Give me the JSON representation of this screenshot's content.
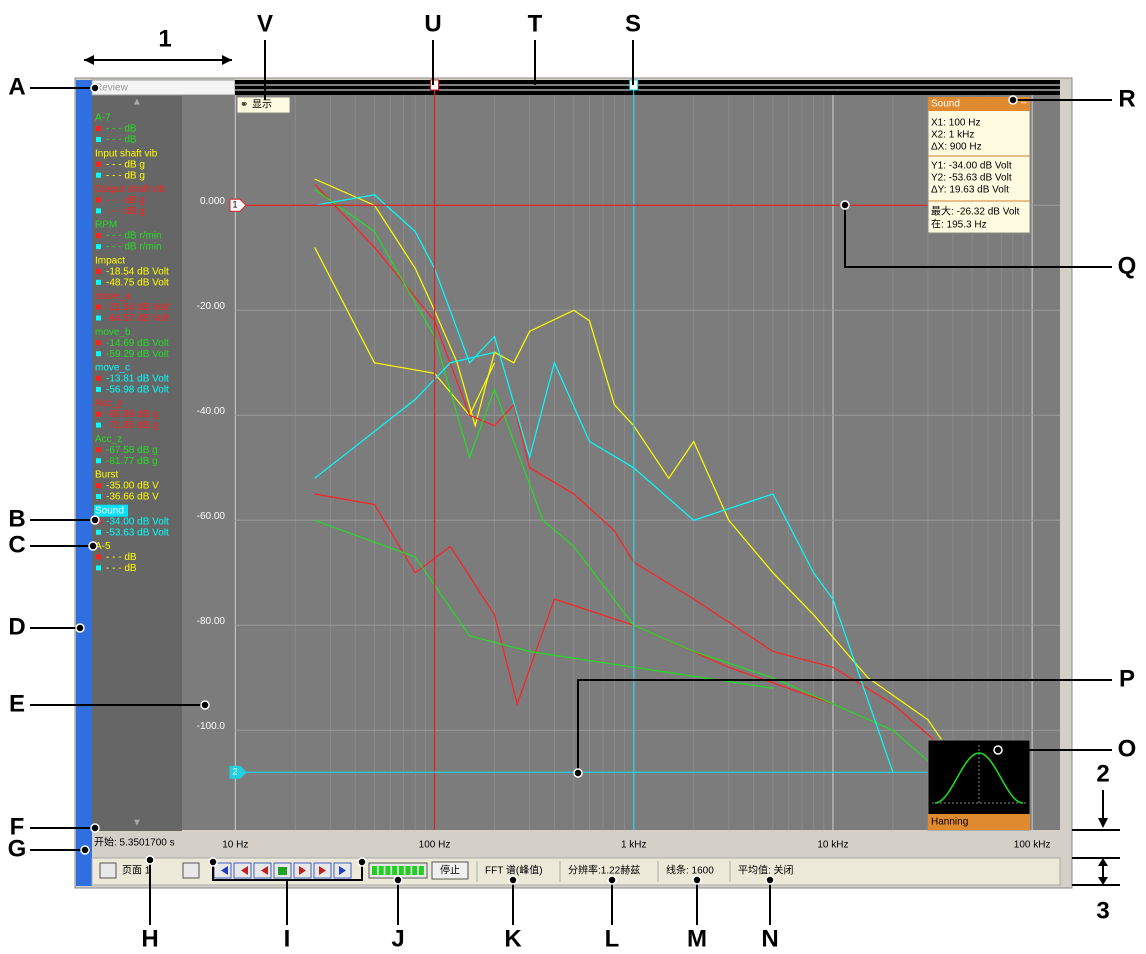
{
  "annotations": [
    "1",
    "A",
    "B",
    "C",
    "D",
    "E",
    "F",
    "G",
    "H",
    "I",
    "J",
    "K",
    "L",
    "M",
    "N",
    "O",
    "P",
    "Q",
    "R",
    "S",
    "T",
    "U",
    "V",
    "2",
    "3"
  ],
  "window": {
    "review_label": "Review",
    "show_button": "显示",
    "start_time": "开始: 5.3501700 s"
  },
  "channels": [
    {
      "name": "A-7",
      "color": "#22dd22",
      "cursor1": "- - - dB",
      "cursor2": "- - - dB"
    },
    {
      "name": "Input shaft vib",
      "color": "#ffff00",
      "cursor1": "- - - dB g",
      "cursor2": "- - - dB g"
    },
    {
      "name": "Output shaft vib",
      "color": "#ff2020",
      "cursor1": "- - - dB g",
      "cursor2": "- - - dB g"
    },
    {
      "name": "RPM",
      "color": "#22dd22",
      "cursor1": "- - - dB r/min",
      "cursor2": "- - - dB r/min"
    },
    {
      "name": "Impact",
      "color": "#ffff00",
      "cursor1": "-18.54  dB Volt",
      "cursor2": "-48.75  dB Volt"
    },
    {
      "name": "move_a",
      "color": "#ff2020",
      "cursor1": "-21.54  dB Volt",
      "cursor2": "-64.57  dB Volt"
    },
    {
      "name": "move_b",
      "color": "#22dd22",
      "cursor1": "-14.69  dB Volt",
      "cursor2": "-59.29  dB Volt"
    },
    {
      "name": "move_c",
      "color": "#00ffff",
      "cursor1": "-13.81  dB Volt",
      "cursor2": "-56.98  dB Volt"
    },
    {
      "name": "Acc_y",
      "color": "#ff2020",
      "cursor1": "-66.99  dB g",
      "cursor2": "-71.85  dB g"
    },
    {
      "name": "Acc_z",
      "color": "#22dd22",
      "cursor1": "-67.58  dB g",
      "cursor2": "-81.77  dB g"
    },
    {
      "name": "Burst",
      "color": "#ffff00",
      "cursor1": "-35.00  dB V",
      "cursor2": "-36.66  dB V"
    },
    {
      "name": "Sound",
      "color": "#00ffff",
      "cursor1": "-34.00  dB Volt",
      "cursor2": "-53.63  dB Volt",
      "selected": true
    },
    {
      "name": "A-5",
      "color": "#ffff00",
      "cursor1": "- - - dB",
      "cursor2": "- - - dB"
    }
  ],
  "cursor_box": {
    "title": "Sound",
    "lines": [
      "X1: 100 Hz",
      "X2: 1 kHz",
      "ΔX: 900 Hz",
      "Y1: -34.00  dB Volt",
      "Y2: -53.63  dB Volt",
      "ΔY: 19.63  dB Volt",
      "最大: -26.32  dB Volt",
      "在: 195.3 Hz"
    ]
  },
  "window_function": "Hanning",
  "status_bar": {
    "page": "页面 1",
    "stop": "停止",
    "mode": "FFT 谱(峰值)",
    "resolution": "分辨率:1.22赫兹",
    "lines": "线条: 1600",
    "average": "平均值: 关闭"
  },
  "chart_data": {
    "type": "line",
    "xscale": "log",
    "xlim": [
      5.4,
      138000
    ],
    "ylim": [
      -119,
      21
    ],
    "xticks": [
      {
        "value": 10,
        "label": "10 Hz"
      },
      {
        "value": 100,
        "label": "100 Hz"
      },
      {
        "value": 1000,
        "label": "1 kHz"
      },
      {
        "value": 10000,
        "label": "10 kHz"
      },
      {
        "value": 100000,
        "label": "100 kHz"
      }
    ],
    "yticks": [
      {
        "value": 0,
        "label": "0.000"
      },
      {
        "value": -20,
        "label": "-20.00"
      },
      {
        "value": -40,
        "label": "-40.00"
      },
      {
        "value": -60,
        "label": "-60.00"
      },
      {
        "value": -80,
        "label": "-80.00"
      },
      {
        "value": -100,
        "label": "-100.0"
      }
    ],
    "grid": true,
    "cursors": {
      "x": [
        100,
        1000
      ],
      "y": [
        0,
        -108
      ],
      "labels": [
        "1",
        "2"
      ],
      "colors": [
        "#e02020",
        "#20d0e0"
      ]
    },
    "series": [
      {
        "color": "#ffff00",
        "x": [
          25,
          50,
          80,
          100,
          130,
          160,
          200,
          250,
          300,
          500,
          600,
          800,
          1000,
          1500,
          2000,
          3000,
          5000,
          8000,
          15000,
          30000,
          40000
        ],
        "values": [
          5,
          0,
          -12,
          -20,
          -30,
          -42,
          -28,
          -30,
          -24,
          -20,
          -22,
          -38,
          -42,
          -52,
          -45,
          -60,
          -70,
          -78,
          -90,
          -98,
          -105
        ]
      },
      {
        "color": "#ffff00",
        "x": [
          25,
          50,
          100,
          150,
          200
        ],
        "values": [
          -8,
          -30,
          -32,
          -40,
          -30
        ]
      },
      {
        "color": "#ff2020",
        "x": [
          25,
          50,
          100,
          150,
          200,
          250,
          300,
          500,
          800,
          1000,
          2000,
          5000,
          10000,
          20000,
          40000
        ],
        "values": [
          4,
          -8,
          -22,
          -40,
          -42,
          -38,
          -50,
          -55,
          -62,
          -68,
          -75,
          -85,
          -88,
          -95,
          -105
        ]
      },
      {
        "color": "#ff2020",
        "x": [
          25,
          50,
          80,
          120,
          200,
          260,
          400,
          1000,
          3000,
          10000
        ],
        "values": [
          -55,
          -57,
          -70,
          -65,
          -78,
          -95,
          -75,
          -80,
          -88,
          -95
        ]
      },
      {
        "color": "#22dd22",
        "x": [
          25,
          50,
          100,
          150,
          200,
          250,
          350,
          500,
          1000,
          2000,
          5000,
          10000,
          20000,
          40000
        ],
        "values": [
          3,
          -5,
          -25,
          -48,
          -35,
          -45,
          -60,
          -65,
          -80,
          -85,
          -90,
          -95,
          -100,
          -110
        ]
      },
      {
        "color": "#22dd22",
        "x": [
          25,
          80,
          150,
          300,
          1000,
          5000
        ],
        "values": [
          -60,
          -67,
          -82,
          -85,
          -88,
          -92
        ]
      },
      {
        "color": "#00ffff",
        "x": [
          25,
          50,
          80,
          100,
          150,
          200,
          300,
          400,
          600,
          1000,
          2000,
          5000,
          8000,
          10000,
          20000
        ],
        "values": [
          0,
          2,
          -5,
          -12,
          -30,
          -25,
          -48,
          -30,
          -45,
          -50,
          -60,
          -55,
          -70,
          -75,
          -108
        ]
      },
      {
        "color": "#00ffff",
        "x": [
          25,
          80,
          120,
          200
        ],
        "values": [
          -52,
          -37,
          -30,
          -28
        ]
      }
    ]
  }
}
